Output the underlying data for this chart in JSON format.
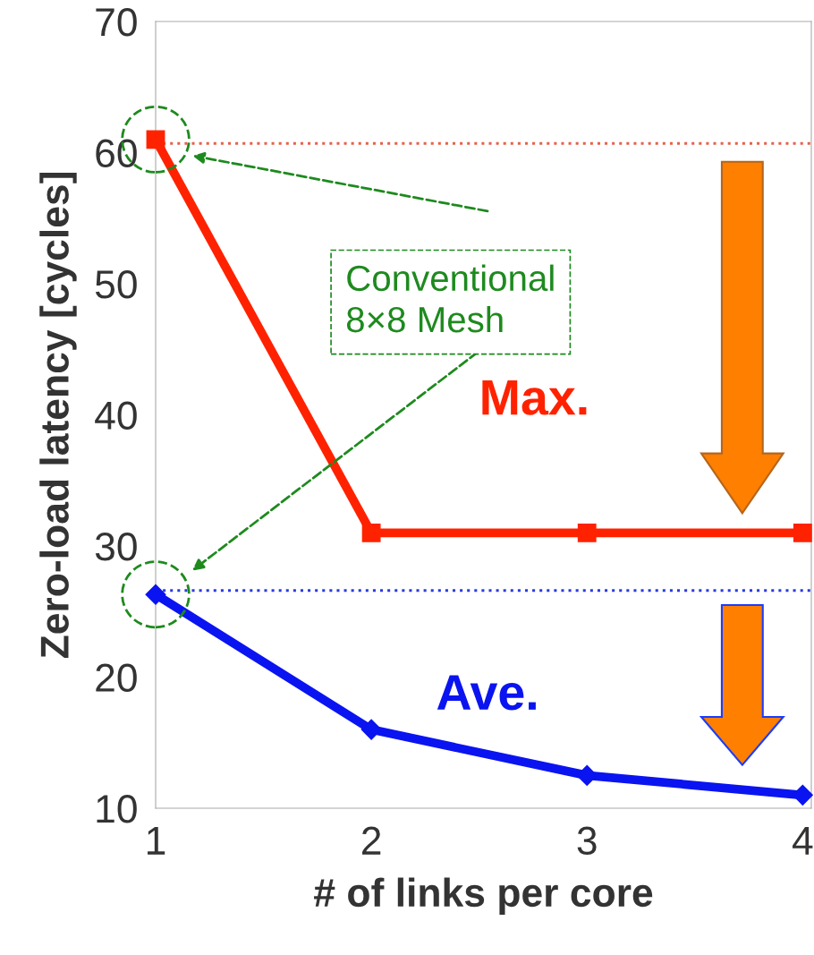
{
  "chart_data": {
    "type": "line",
    "xlabel": "# of links per core",
    "ylabel": "Zero-load latency [cycles]",
    "x": [
      1,
      2,
      3,
      4
    ],
    "series": [
      {
        "name": "Max.",
        "color": "#ff2200",
        "marker": "square",
        "values": [
          61,
          31,
          31,
          31
        ]
      },
      {
        "name": "Ave.",
        "color": "#0a14f0",
        "marker": "diamond",
        "values": [
          26.3,
          16,
          12.5,
          11
        ]
      }
    ],
    "xlim": [
      1,
      4.04
    ],
    "xticks": [
      1,
      2,
      3,
      4
    ],
    "ylim": [
      10,
      70
    ],
    "yticks": [
      10,
      20,
      30,
      40,
      50,
      60,
      70
    ],
    "ref_lines": [
      {
        "axis": "y",
        "value": 60.7,
        "color": "#e8604a",
        "line_style": "dotted"
      },
      {
        "axis": "y",
        "value": 26.6,
        "color": "#2a3ce0",
        "line_style": "dotted"
      }
    ],
    "annotations": [
      "Conventional\n8×8 Mesh"
    ],
    "grid": false,
    "legend": false,
    "line_style": "solid"
  }
}
